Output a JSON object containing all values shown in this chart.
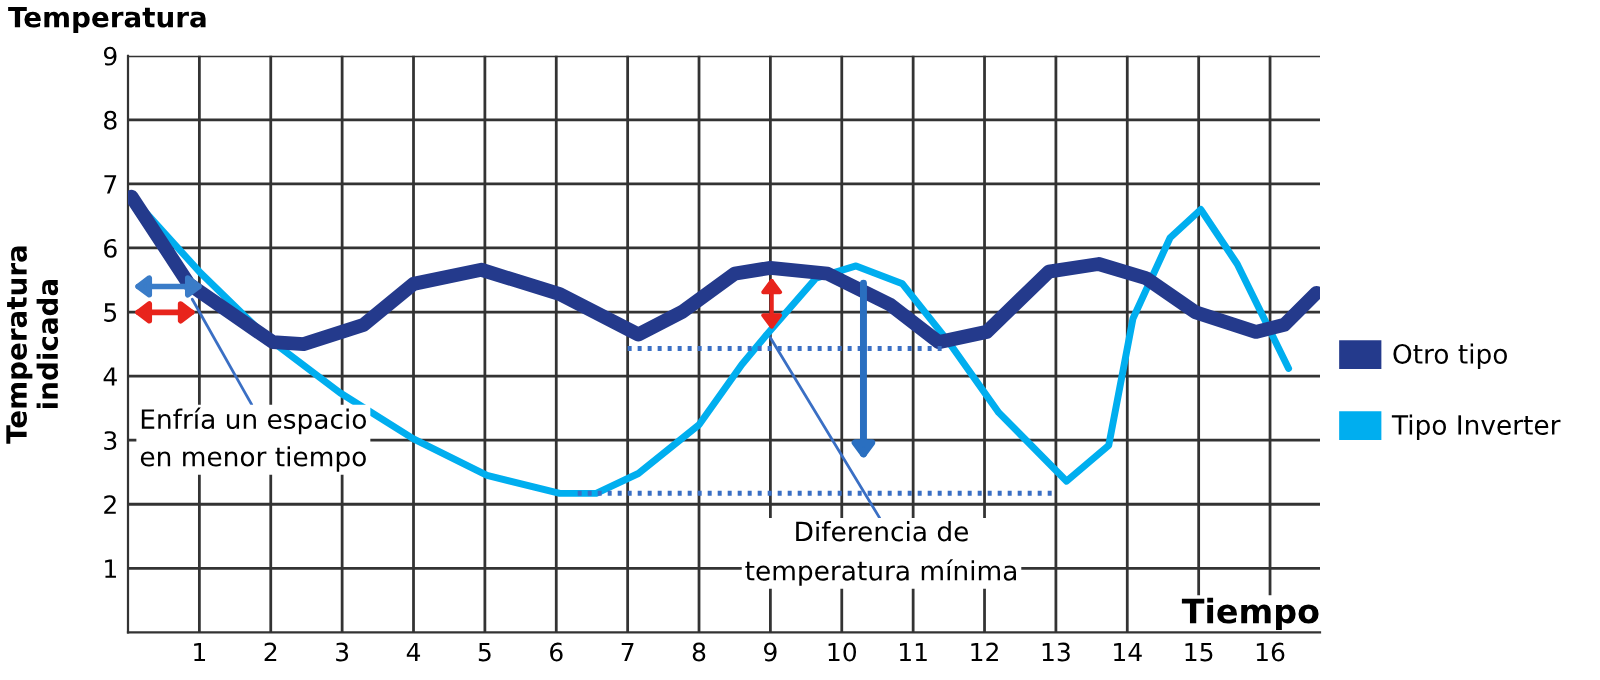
{
  "chart_data": {
    "type": "line",
    "title": "Temperatura",
    "xlabel": "Tiempo",
    "ylabel": "Temperatura\nindicada",
    "xlim": [
      0,
      16.7
    ],
    "ylim": [
      0,
      9
    ],
    "xticks": [
      1,
      2,
      3,
      4,
      5,
      6,
      7,
      8,
      9,
      10,
      11,
      12,
      13,
      14,
      15,
      16
    ],
    "yticks": [
      1,
      2,
      3,
      4,
      5,
      6,
      7,
      8,
      9
    ],
    "grid": true,
    "legend": "right",
    "series": [
      {
        "name": "Otro tipo",
        "color": "#243a8c",
        "x": [
          0.05,
          0.85,
          2.03,
          2.46,
          3.3,
          4.0,
          4.95,
          6.05,
          7.15,
          7.76,
          8.5,
          9.0,
          9.8,
          10.67,
          11.36,
          12.03,
          12.9,
          13.6,
          14.26,
          14.95,
          15.8,
          16.2,
          16.65
        ],
        "values": [
          6.8,
          5.44,
          4.53,
          4.5,
          4.8,
          5.44,
          5.66,
          5.28,
          4.65,
          5.0,
          5.6,
          5.69,
          5.6,
          5.12,
          4.53,
          4.69,
          5.63,
          5.75,
          5.53,
          5.0,
          4.69,
          4.8,
          5.3
        ]
      },
      {
        "name": "Tipo Inverter",
        "color": "#00aeef",
        "x": [
          0.05,
          1.0,
          1.95,
          2.97,
          4.0,
          5.03,
          6.05,
          6.56,
          7.15,
          8.0,
          8.6,
          8.95,
          9.64,
          10.2,
          10.85,
          11.5,
          12.2,
          13.15,
          13.74,
          14.08,
          14.6,
          15.03,
          15.54,
          16.26
        ],
        "values": [
          6.8,
          5.63,
          4.6,
          3.74,
          3.02,
          2.45,
          2.17,
          2.17,
          2.48,
          3.24,
          4.18,
          4.65,
          5.53,
          5.72,
          5.44,
          4.53,
          3.43,
          2.36,
          2.92,
          4.9,
          6.16,
          6.6,
          5.75,
          4.12
        ]
      },
      {
        "color": "#3a6fc4",
        "line_style": "dotted",
        "x": [
          7,
          11.4
        ],
        "values": [
          4.43,
          4.43
        ]
      },
      {
        "color": "#3a6fc4",
        "line_style": "dotted",
        "x": [
          6.3,
          13.0
        ],
        "values": [
          2.17,
          2.17
        ]
      }
    ],
    "annotations": [
      {
        "text": "Enfría un espacio\nen menor tiempo",
        "x": 0.9,
        "y": 5.2
      },
      {
        "text": "Diferencia de\ntemperatura mínima",
        "x": 9,
        "y": 4.6
      }
    ]
  }
}
